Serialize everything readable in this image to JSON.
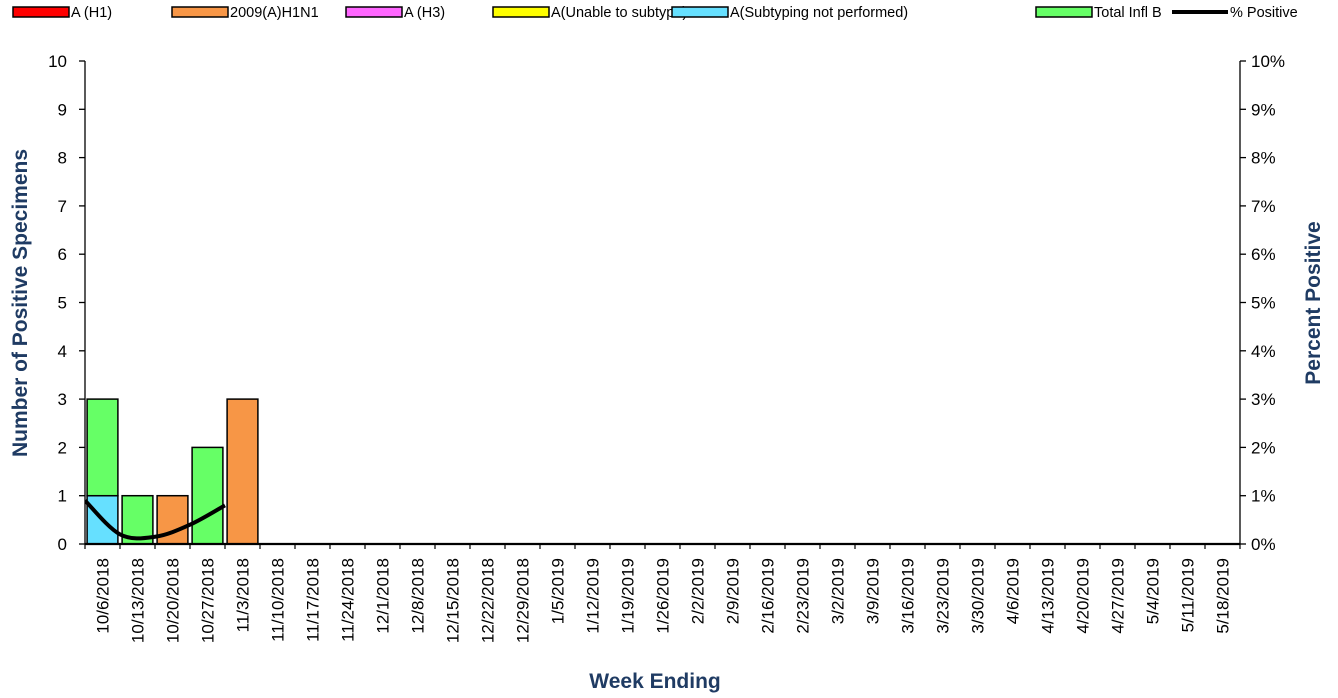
{
  "chart_data": {
    "type": "bar",
    "stacked": true,
    "xlabel": "Week Ending",
    "ylabel": "Number of  Positive Specimens",
    "y2label": "Percent Positive",
    "ylim": [
      0,
      10
    ],
    "y2lim": [
      0,
      10
    ],
    "yticks": [
      "0",
      "1",
      "2",
      "3",
      "4",
      "5",
      "6",
      "7",
      "8",
      "9",
      "10"
    ],
    "y2ticks": [
      "0%",
      "1%",
      "2%",
      "3%",
      "4%",
      "5%",
      "6%",
      "7%",
      "8%",
      "9%",
      "10%"
    ],
    "legend_position": "top",
    "categories": [
      "10/6/2018",
      "10/13/2018",
      "10/20/2018",
      "10/27/2018",
      "11/3/2018",
      "11/10/2018",
      "11/17/2018",
      "11/24/2018",
      "12/1/2018",
      "12/8/2018",
      "12/15/2018",
      "12/22/2018",
      "12/29/2018",
      "1/5/2019",
      "1/12/2019",
      "1/19/2019",
      "1/26/2019",
      "2/2/2019",
      "2/9/2019",
      "2/16/2019",
      "2/23/2019",
      "3/2/2019",
      "3/9/2019",
      "3/16/2019",
      "3/23/2019",
      "3/30/2019",
      "4/6/2019",
      "4/13/2019",
      "4/20/2019",
      "4/27/2019",
      "5/4/2019",
      "5/11/2019",
      "5/18/2019"
    ],
    "series": [
      {
        "name": "A (H1)",
        "kind": "bar",
        "color": "#ff0000",
        "values": [
          0,
          0,
          0,
          0,
          0,
          0,
          0,
          0,
          0,
          0,
          0,
          0,
          0,
          0,
          0,
          0,
          0,
          0,
          0,
          0,
          0,
          0,
          0,
          0,
          0,
          0,
          0,
          0,
          0,
          0,
          0,
          0,
          0
        ]
      },
      {
        "name": "2009(A)H1N1",
        "kind": "bar",
        "color": "#f79646",
        "values": [
          0,
          0,
          1,
          0,
          3,
          0,
          0,
          0,
          0,
          0,
          0,
          0,
          0,
          0,
          0,
          0,
          0,
          0,
          0,
          0,
          0,
          0,
          0,
          0,
          0,
          0,
          0,
          0,
          0,
          0,
          0,
          0,
          0
        ]
      },
      {
        "name": "A (H3)",
        "kind": "bar",
        "color": "#ff66ff",
        "values": [
          0,
          0,
          0,
          0,
          0,
          0,
          0,
          0,
          0,
          0,
          0,
          0,
          0,
          0,
          0,
          0,
          0,
          0,
          0,
          0,
          0,
          0,
          0,
          0,
          0,
          0,
          0,
          0,
          0,
          0,
          0,
          0,
          0
        ]
      },
      {
        "name": "A(Unable to subtype)",
        "kind": "bar",
        "color": "#ffff00",
        "values": [
          0,
          0,
          0,
          0,
          0,
          0,
          0,
          0,
          0,
          0,
          0,
          0,
          0,
          0,
          0,
          0,
          0,
          0,
          0,
          0,
          0,
          0,
          0,
          0,
          0,
          0,
          0,
          0,
          0,
          0,
          0,
          0,
          0
        ]
      },
      {
        "name": "A(Subtyping not performed)",
        "kind": "bar",
        "color": "#66e0ff",
        "values": [
          1,
          0,
          0,
          0,
          0,
          0,
          0,
          0,
          0,
          0,
          0,
          0,
          0,
          0,
          0,
          0,
          0,
          0,
          0,
          0,
          0,
          0,
          0,
          0,
          0,
          0,
          0,
          0,
          0,
          0,
          0,
          0,
          0
        ]
      },
      {
        "name": "Total Infl B",
        "kind": "bar",
        "color": "#66ff66",
        "values": [
          2,
          1,
          0,
          2,
          0,
          0,
          0,
          0,
          0,
          0,
          0,
          0,
          0,
          0,
          0,
          0,
          0,
          0,
          0,
          0,
          0,
          0,
          0,
          0,
          0,
          0,
          0,
          0,
          0,
          0,
          0,
          0,
          0
        ]
      },
      {
        "name": "% Positive",
        "kind": "line",
        "axis": "right",
        "color": "#000000",
        "values": [
          0.9,
          0.2,
          0.15,
          0.4,
          0.8,
          null,
          null,
          null,
          null,
          null,
          null,
          null,
          null,
          null,
          null,
          null,
          null,
          null,
          null,
          null,
          null,
          null,
          null,
          null,
          null,
          null,
          null,
          null,
          null,
          null,
          null,
          null,
          null
        ]
      }
    ]
  }
}
